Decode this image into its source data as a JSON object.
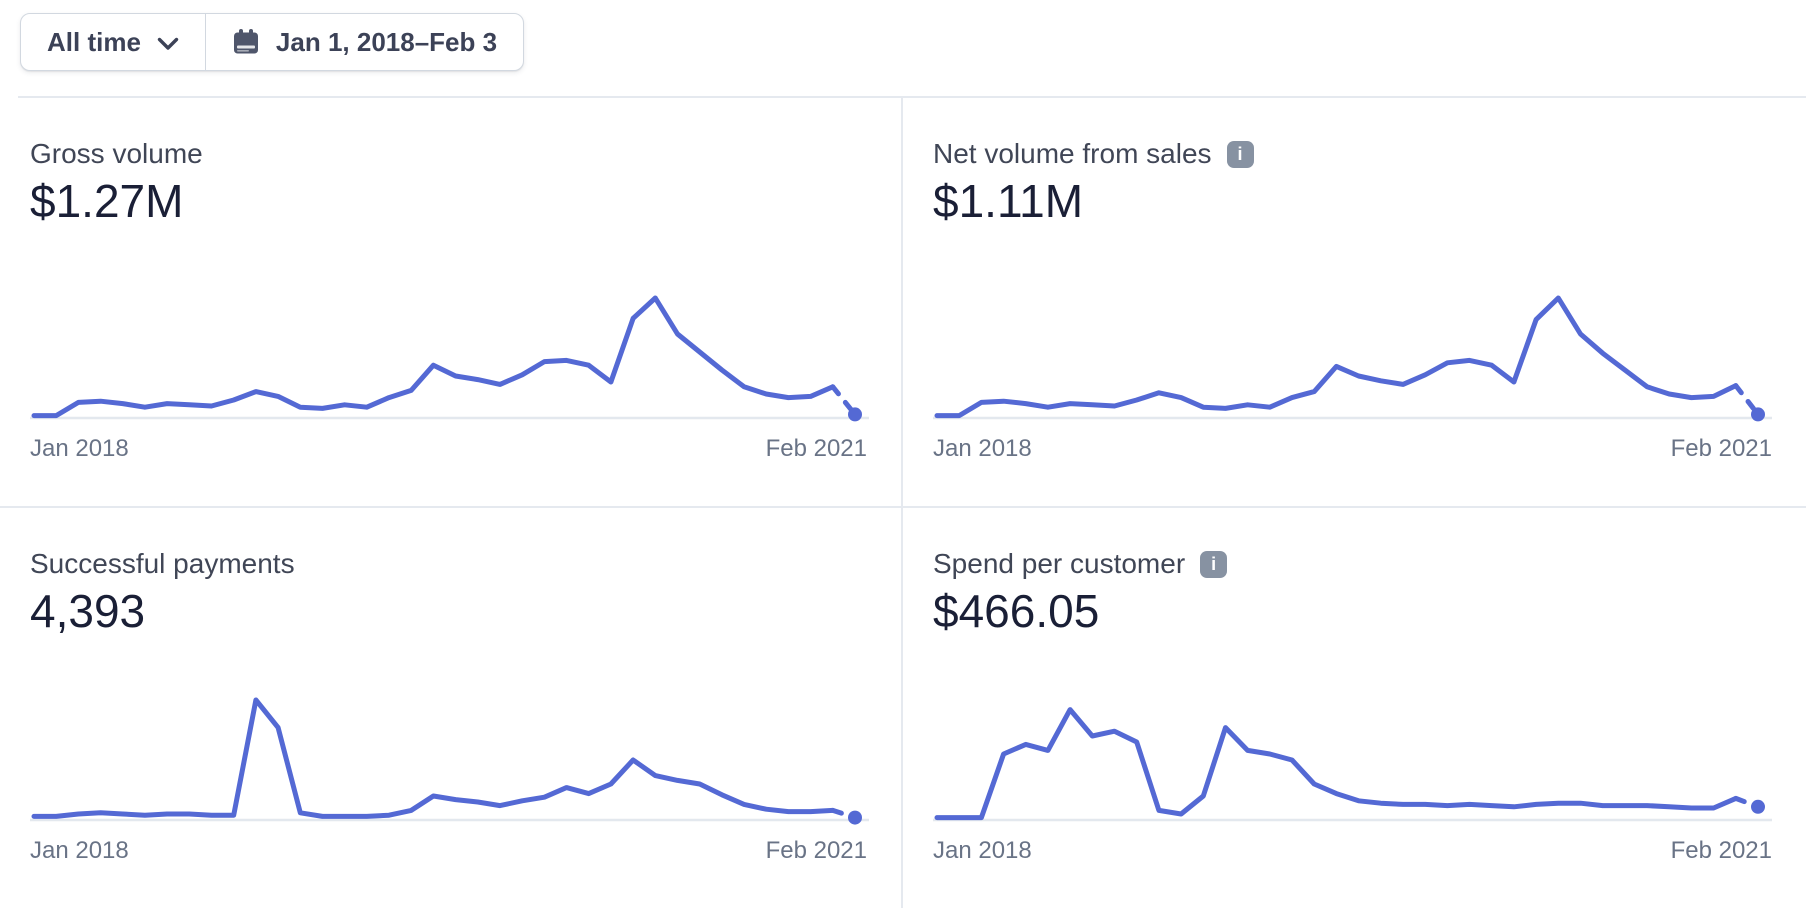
{
  "toolbar": {
    "preset_label": "All time",
    "date_label": "Jan 1, 2018–Feb 3"
  },
  "ui": {
    "info_icon_glyph": "i",
    "colors": {
      "accent": "#5469d4",
      "baseline": "#e3e8ee",
      "divider": "#e5e9ef",
      "title_text": "#404656",
      "value_text": "#1a1f36",
      "axis_text": "#697386",
      "info_badge_bg": "#8792a2"
    }
  },
  "chart_data": [
    {
      "type": "line",
      "title": "Gross volume",
      "total_label": "$1.27M",
      "x_start": "Jan 2018",
      "x_end": "Feb 2021",
      "granularity": "monthly",
      "y_units": "relative height, % of series peak (y-axis unlabeled in UI)",
      "legend": "none",
      "grid": "baseline only",
      "final_segment_style": "dashed projection ending in dot (partial current period)",
      "values": [
        2,
        2,
        13,
        14,
        12,
        9,
        12,
        11,
        10,
        15,
        22,
        18,
        9,
        8,
        11,
        9,
        17,
        23,
        44,
        35,
        32,
        28,
        36,
        47,
        48,
        44,
        30,
        83,
        100,
        70,
        55,
        40,
        26,
        20,
        17,
        18,
        26,
        3
      ]
    },
    {
      "type": "line",
      "title": "Net volume from sales",
      "total_label": "$1.11M",
      "x_start": "Jan 2018",
      "x_end": "Feb 2021",
      "granularity": "monthly",
      "y_units": "relative height, % of series peak (y-axis unlabeled in UI)",
      "legend": "none",
      "grid": "baseline only",
      "final_segment_style": "dashed projection ending in dot (partial current period)",
      "values": [
        2,
        2,
        13,
        14,
        12,
        9,
        12,
        11,
        10,
        15,
        21,
        17,
        9,
        8,
        11,
        9,
        17,
        22,
        43,
        35,
        31,
        28,
        36,
        46,
        48,
        44,
        30,
        82,
        100,
        70,
        54,
        40,
        26,
        20,
        17,
        18,
        27,
        3
      ]
    },
    {
      "type": "line",
      "title": "Successful payments",
      "total_label": "4,393",
      "x_start": "Jan 2018",
      "x_end": "Feb 2021",
      "granularity": "monthly",
      "y_units": "relative height, % of series peak (y-axis unlabeled in UI)",
      "legend": "none",
      "grid": "baseline only",
      "final_segment_style": "dashed projection ending in dot (partial current period)",
      "values": [
        3,
        3,
        5,
        6,
        5,
        4,
        5,
        5,
        4,
        4,
        100,
        77,
        6,
        3,
        3,
        3,
        4,
        8,
        20,
        17,
        15,
        12,
        16,
        19,
        27,
        22,
        30,
        50,
        37,
        33,
        30,
        21,
        13,
        9,
        7,
        7,
        8,
        2
      ]
    },
    {
      "type": "line",
      "title": "Spend per customer",
      "total_label": "$466.05",
      "x_start": "Jan 2018",
      "x_end": "Feb 2021",
      "granularity": "monthly",
      "y_units": "relative height, % of series peak (y-axis unlabeled in UI)",
      "legend": "none",
      "grid": "baseline only",
      "final_segment_style": "dashed projection ending in dot (partial current period)",
      "values": [
        2,
        2,
        2,
        55,
        63,
        58,
        92,
        70,
        74,
        65,
        8,
        5,
        20,
        77,
        58,
        55,
        50,
        30,
        22,
        16,
        14,
        13,
        13,
        12,
        13,
        12,
        11,
        13,
        14,
        14,
        12,
        12,
        12,
        11,
        10,
        10,
        18,
        11
      ]
    }
  ]
}
